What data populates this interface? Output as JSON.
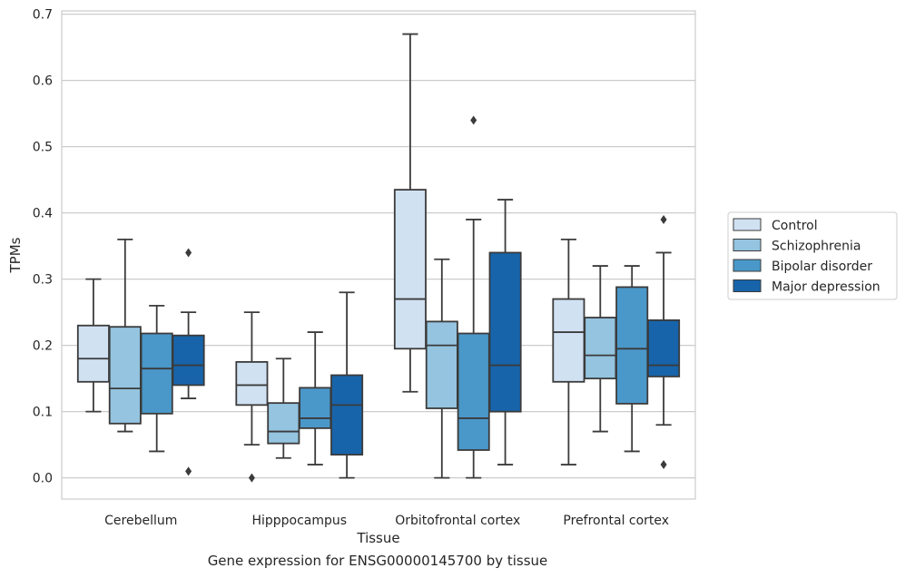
{
  "chart_data": {
    "type": "box",
    "xlabel": "Tissue",
    "ylabel": "TPMs",
    "caption": "Gene expression for ENSG00000145700 by tissue",
    "ylim": [
      -0.032,
      0.705
    ],
    "yticks": [
      "0.0",
      "0.1",
      "0.2",
      "0.3",
      "0.4",
      "0.5",
      "0.6",
      "0.7"
    ],
    "grid": "horizontal",
    "legend_position": "right",
    "categories": [
      "Cerebellum",
      "Hipppocampus",
      "Orbitofrontal cortex",
      "Prefrontal cortex"
    ],
    "series": [
      {
        "name": "Control",
        "color": "#d0e1f2",
        "boxes": [
          {
            "whislo": 0.1,
            "q1": 0.145,
            "med": 0.18,
            "q3": 0.23,
            "whishi": 0.3,
            "fliers": []
          },
          {
            "whislo": 0.05,
            "q1": 0.11,
            "med": 0.14,
            "q3": 0.175,
            "whishi": 0.25,
            "fliers": [
              0.0
            ]
          },
          {
            "whislo": 0.13,
            "q1": 0.195,
            "med": 0.27,
            "q3": 0.435,
            "whishi": 0.67,
            "fliers": []
          },
          {
            "whislo": 0.02,
            "q1": 0.145,
            "med": 0.22,
            "q3": 0.27,
            "whishi": 0.36,
            "fliers": []
          }
        ]
      },
      {
        "name": "Schizophrenia",
        "color": "#94c4df",
        "boxes": [
          {
            "whislo": 0.07,
            "q1": 0.082,
            "med": 0.135,
            "q3": 0.228,
            "whishi": 0.36,
            "fliers": []
          },
          {
            "whislo": 0.03,
            "q1": 0.052,
            "med": 0.07,
            "q3": 0.113,
            "whishi": 0.18,
            "fliers": []
          },
          {
            "whislo": 0.0,
            "q1": 0.105,
            "med": 0.2,
            "q3": 0.236,
            "whishi": 0.33,
            "fliers": []
          },
          {
            "whislo": 0.07,
            "q1": 0.15,
            "med": 0.185,
            "q3": 0.242,
            "whishi": 0.32,
            "fliers": []
          }
        ]
      },
      {
        "name": "Bipolar disorder",
        "color": "#4a98c9",
        "boxes": [
          {
            "whislo": 0.04,
            "q1": 0.097,
            "med": 0.165,
            "q3": 0.218,
            "whishi": 0.26,
            "fliers": []
          },
          {
            "whislo": 0.02,
            "q1": 0.075,
            "med": 0.09,
            "q3": 0.136,
            "whishi": 0.22,
            "fliers": []
          },
          {
            "whislo": 0.0,
            "q1": 0.042,
            "med": 0.09,
            "q3": 0.218,
            "whishi": 0.39,
            "fliers": [
              0.54
            ]
          },
          {
            "whislo": 0.04,
            "q1": 0.112,
            "med": 0.195,
            "q3": 0.288,
            "whishi": 0.32,
            "fliers": []
          }
        ]
      },
      {
        "name": "Major depression",
        "color": "#1764ab",
        "boxes": [
          {
            "whislo": 0.12,
            "q1": 0.14,
            "med": 0.17,
            "q3": 0.215,
            "whishi": 0.25,
            "fliers": [
              0.01,
              0.34
            ]
          },
          {
            "whislo": 0.0,
            "q1": 0.035,
            "med": 0.11,
            "q3": 0.155,
            "whishi": 0.28,
            "fliers": []
          },
          {
            "whislo": 0.02,
            "q1": 0.1,
            "med": 0.17,
            "q3": 0.34,
            "whishi": 0.42,
            "fliers": []
          },
          {
            "whislo": 0.08,
            "q1": 0.153,
            "med": 0.17,
            "q3": 0.238,
            "whishi": 0.34,
            "fliers": [
              0.02,
              0.39
            ]
          }
        ]
      }
    ]
  }
}
